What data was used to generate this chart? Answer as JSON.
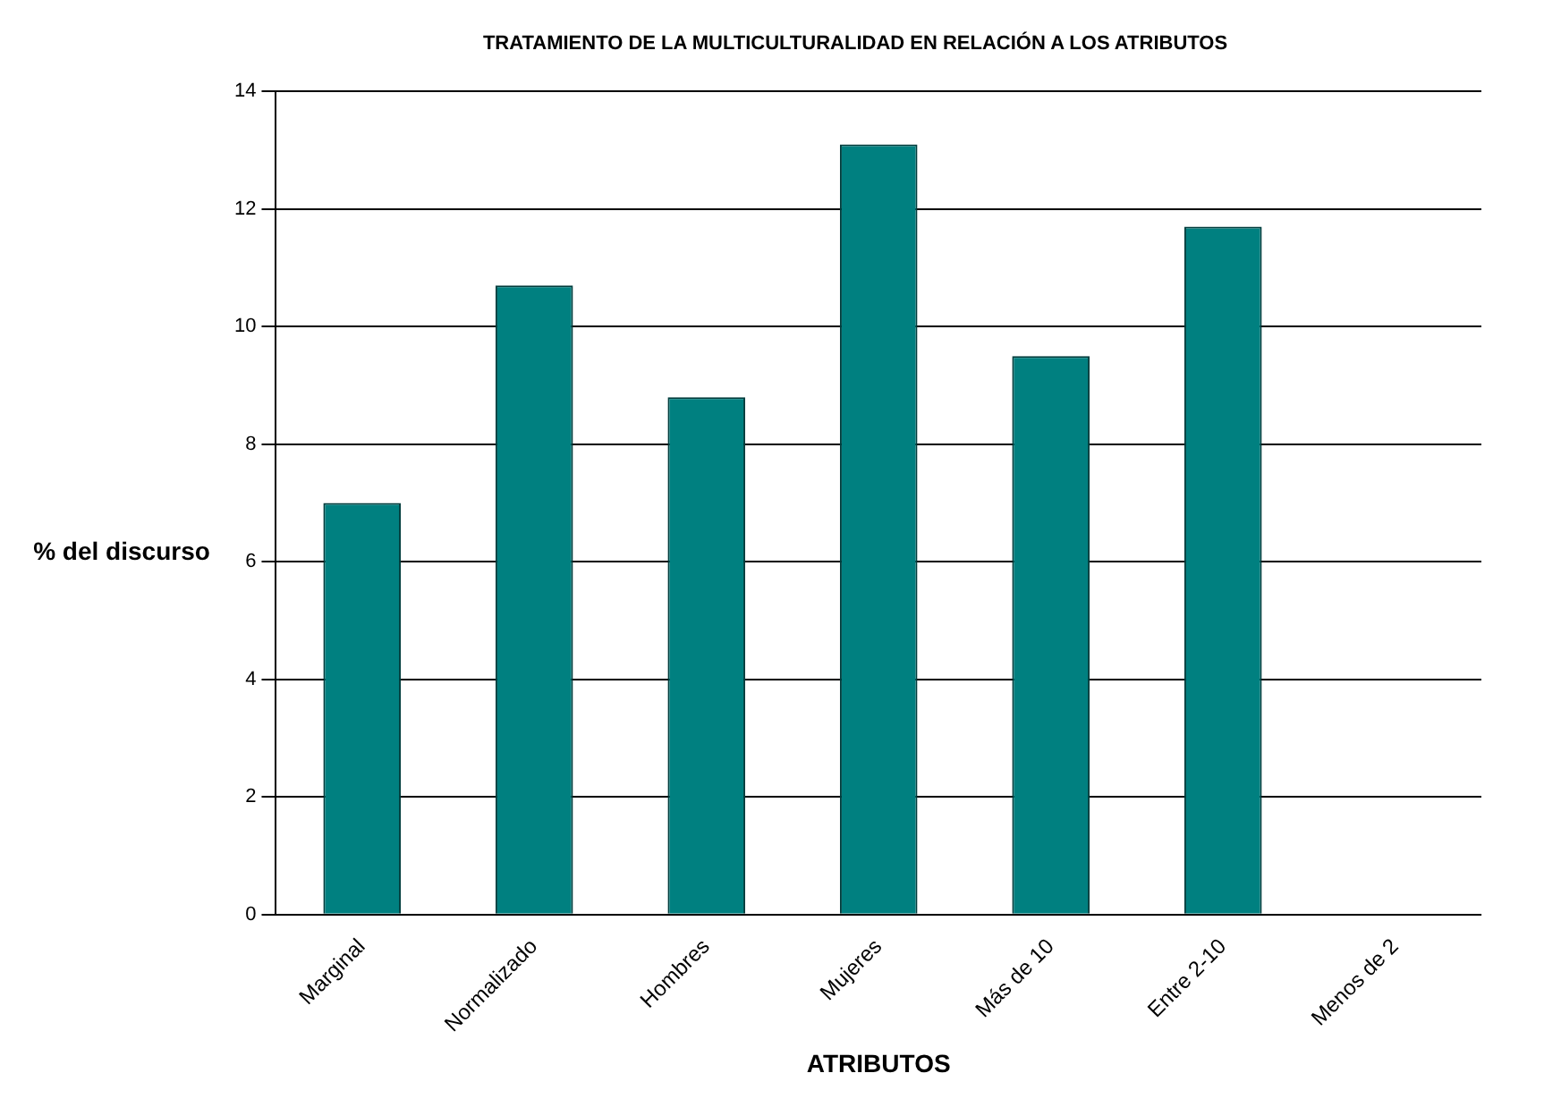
{
  "chart_data": {
    "type": "bar",
    "title": "TRATAMIENTO DE LA MULTICULTURALIDAD EN RELACIÓN A LOS ATRIBUTOS",
    "xlabel": "ATRIBUTOS",
    "ylabel": "% del discurso",
    "categories": [
      "Marginal",
      "Normalizado",
      "Hombres",
      "Mujeres",
      "Más de 10",
      "Entre 2-10",
      "Menos de 2"
    ],
    "values": [
      7.0,
      10.7,
      8.8,
      13.1,
      9.5,
      11.7,
      0
    ],
    "color": "#008080",
    "ylim": [
      0,
      14
    ],
    "yticks": [
      0,
      2,
      4,
      6,
      8,
      10,
      12,
      14
    ],
    "grid": "y",
    "legend": false
  }
}
